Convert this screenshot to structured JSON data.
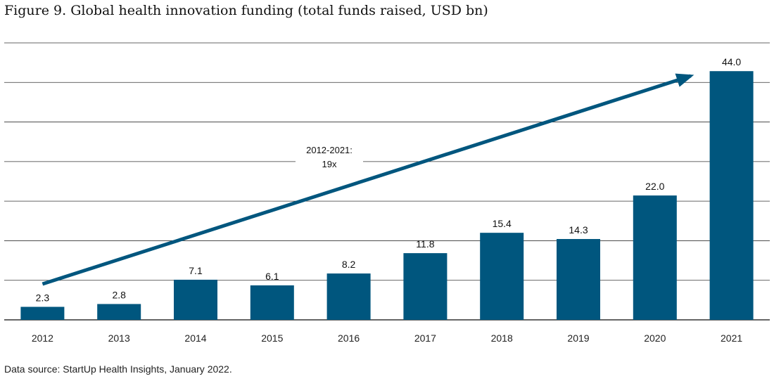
{
  "title": "Figure 9. Global health innovation funding (total funds raised, USD bn)",
  "source": "Data source: StartUp Health Insights, January 2022.",
  "colors": {
    "bar": "#00567e",
    "arrow": "#00567e",
    "grid": "#333333"
  },
  "chart_data": {
    "type": "bar",
    "categories": [
      "2012",
      "2013",
      "2014",
      "2015",
      "2016",
      "2017",
      "2018",
      "2019",
      "2020",
      "2021"
    ],
    "values": [
      2.3,
      2.8,
      7.1,
      6.1,
      8.2,
      11.8,
      15.4,
      14.3,
      22.0,
      44.0
    ],
    "value_labels": [
      "2.3",
      "2.8",
      "7.1",
      "6.1",
      "8.2",
      "11.8",
      "15.4",
      "14.3",
      "22.0",
      "44.0"
    ],
    "ylim": [
      0,
      49
    ],
    "grid": true,
    "annotation": {
      "line1": "2012-2021:",
      "line2": "19x",
      "from_category": "2012",
      "to_category": "2021"
    }
  }
}
